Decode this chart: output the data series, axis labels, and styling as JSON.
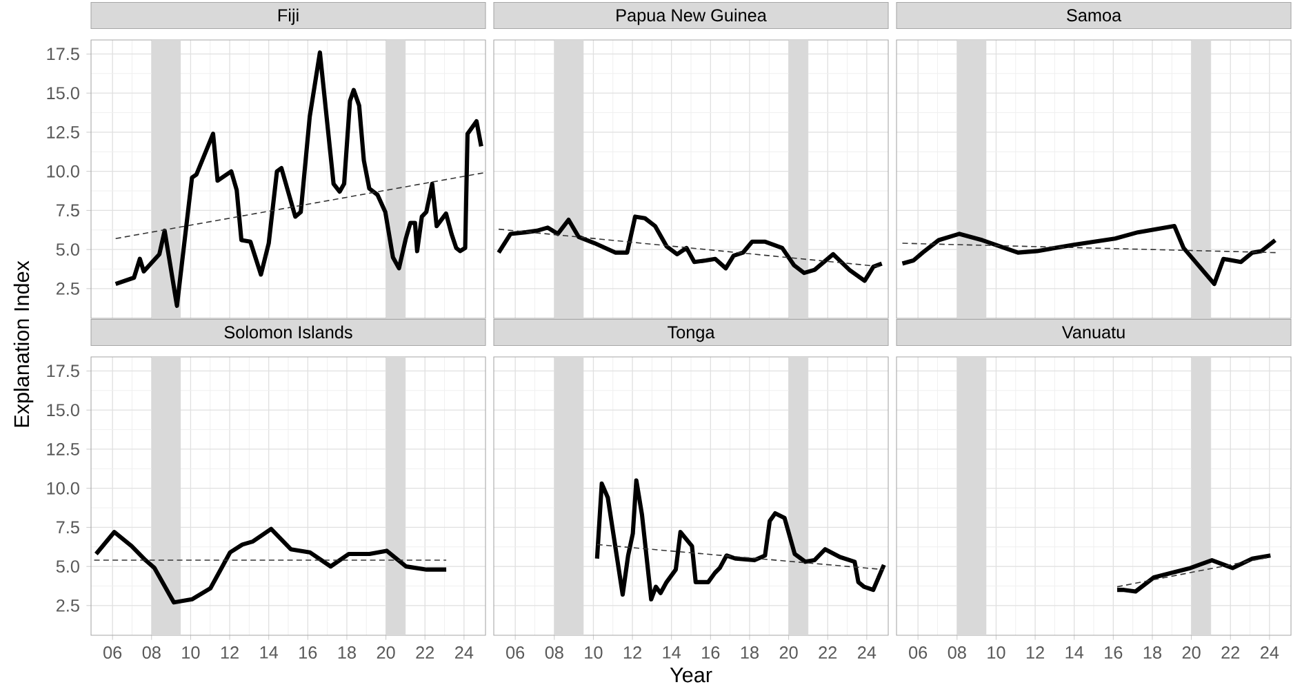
{
  "chart_data": [
    {
      "type": "line",
      "title": "Fiji",
      "ylabel": "Explanation Index",
      "xlim": [
        4.9,
        25.1
      ],
      "ylim": [
        0.6,
        18.4
      ],
      "grid": true,
      "tick_labels": "y",
      "xticks": [
        {
          "value": 6,
          "label": null
        },
        {
          "value": 8,
          "label": null
        },
        {
          "value": 10,
          "label": null
        },
        {
          "value": 12,
          "label": null
        },
        {
          "value": 14,
          "label": null
        },
        {
          "value": 16,
          "label": null
        },
        {
          "value": 18,
          "label": null
        },
        {
          "value": 20,
          "label": null
        },
        {
          "value": 22,
          "label": null
        },
        {
          "value": 24,
          "label": null
        }
      ],
      "yticks": [
        2.5,
        {
          "value": 5,
          "label": "5.0"
        },
        7.5,
        {
          "value": 10,
          "label": "10.0"
        },
        12.5,
        {
          "value": 15,
          "label": "15.0"
        },
        17.5
      ],
      "bands": [
        {
          "axis": "x",
          "from": 8,
          "to": 9.5,
          "color": "#d9d9d9"
        },
        {
          "axis": "x",
          "from": 20,
          "to": 21,
          "color": "#d9d9d9"
        }
      ],
      "series": [
        {
          "color": "#000000",
          "line_style": "solid",
          "x": [
            6.16,
            7.1,
            7.4,
            7.6,
            8.4,
            8.67,
            9.3,
            10.07,
            10.3,
            11.15,
            11.38,
            12.08,
            12.36,
            12.6,
            13.06,
            13.6,
            14.0,
            14.42,
            14.65,
            15.36,
            15.64,
            16.1,
            16.62,
            17.32,
            17.63,
            17.86,
            18.16,
            18.35,
            18.63,
            18.87,
            19.15,
            19.57,
            19.97,
            20.36,
            20.67,
            21.02,
            21.25,
            21.49,
            21.6,
            21.84,
            22.07,
            22.37,
            22.6,
            23.08,
            23.36,
            23.6,
            23.8,
            24.06,
            24.18,
            24.64,
            24.88
          ],
          "values": [
            2.8,
            3.2,
            4.4,
            3.6,
            4.7,
            6.2,
            1.4,
            9.6,
            9.8,
            12.4,
            9.4,
            10.0,
            8.8,
            5.6,
            5.5,
            3.4,
            5.4,
            10.0,
            10.2,
            7.1,
            7.4,
            13.5,
            17.6,
            9.2,
            8.7,
            9.2,
            14.5,
            15.2,
            14.2,
            10.7,
            8.9,
            8.5,
            7.4,
            4.5,
            3.8,
            5.7,
            6.7,
            6.7,
            4.9,
            7.1,
            7.4,
            9.2,
            6.5,
            7.3,
            6.0,
            5.1,
            4.9,
            5.1,
            12.4,
            13.2,
            11.6
          ]
        },
        {
          "type": "line",
          "color": "#333333",
          "line_style": "dashed",
          "x": [
            6.16,
            24.99
          ],
          "values": [
            5.7,
            9.9
          ]
        }
      ]
    },
    {
      "type": "line",
      "title": "Papua New Guinea",
      "xlim": [
        4.9,
        25.1
      ],
      "ylim": [
        0.6,
        18.4
      ],
      "grid": true,
      "tick_labels": false,
      "xticks": [
        {
          "value": 6,
          "label": null
        },
        {
          "value": 8,
          "label": null
        },
        {
          "value": 10,
          "label": null
        },
        {
          "value": 12,
          "label": null
        },
        {
          "value": 14,
          "label": null
        },
        {
          "value": 16,
          "label": null
        },
        {
          "value": 18,
          "label": null
        },
        {
          "value": 20,
          "label": null
        },
        {
          "value": 22,
          "label": null
        },
        {
          "value": 24,
          "label": null
        }
      ],
      "yticks": [
        {
          "value": 2.5,
          "label": null
        },
        {
          "value": 5,
          "label": null
        },
        {
          "value": 7.5,
          "label": null
        },
        {
          "value": 10,
          "label": null
        },
        {
          "value": 12.5,
          "label": null
        },
        {
          "value": 15,
          "label": null
        },
        {
          "value": 17.5,
          "label": null
        }
      ],
      "bands": [
        {
          "axis": "x",
          "from": 8,
          "to": 9.5,
          "color": "#d9d9d9"
        },
        {
          "axis": "x",
          "from": 20,
          "to": 21,
          "color": "#d9d9d9"
        }
      ],
      "series": [
        {
          "color": "#000000",
          "line_style": "solid",
          "x": [
            5.15,
            5.76,
            6.52,
            7.11,
            7.66,
            8.18,
            8.73,
            9.25,
            10.07,
            11.14,
            11.73,
            12.14,
            12.64,
            13.16,
            13.75,
            14.29,
            14.77,
            15.17,
            15.76,
            16.24,
            16.78,
            17.18,
            17.66,
            18.13,
            18.8,
            19.67,
            20.27,
            20.79,
            21.33,
            22.28,
            23.11,
            23.89,
            24.34,
            24.77
          ],
          "values": [
            4.8,
            6.0,
            6.1,
            6.2,
            6.4,
            6.0,
            6.9,
            5.8,
            5.4,
            4.8,
            4.8,
            7.1,
            7.0,
            6.5,
            5.2,
            4.7,
            5.1,
            4.2,
            4.3,
            4.4,
            3.8,
            4.6,
            4.8,
            5.5,
            5.5,
            5.1,
            4.0,
            3.5,
            3.7,
            4.7,
            3.7,
            3.0,
            3.9,
            4.1
          ]
        },
        {
          "type": "line",
          "color": "#333333",
          "line_style": "dashed",
          "x": [
            5.15,
            24.77
          ],
          "values": [
            6.3,
            3.9
          ]
        }
      ]
    },
    {
      "type": "line",
      "title": "Samoa",
      "xlim": [
        4.9,
        25.1
      ],
      "ylim": [
        0.6,
        18.4
      ],
      "grid": true,
      "tick_labels": false,
      "xticks": [
        {
          "value": 6,
          "label": null
        },
        {
          "value": 8,
          "label": null
        },
        {
          "value": 10,
          "label": null
        },
        {
          "value": 12,
          "label": null
        },
        {
          "value": 14,
          "label": null
        },
        {
          "value": 16,
          "label": null
        },
        {
          "value": 18,
          "label": null
        },
        {
          "value": 20,
          "label": null
        },
        {
          "value": 22,
          "label": null
        },
        {
          "value": 24,
          "label": null
        }
      ],
      "yticks": [
        {
          "value": 2.5,
          "label": null
        },
        {
          "value": 5,
          "label": null
        },
        {
          "value": 7.5,
          "label": null
        },
        {
          "value": 10,
          "label": null
        },
        {
          "value": 12.5,
          "label": null
        },
        {
          "value": 15,
          "label": null
        },
        {
          "value": 17.5,
          "label": null
        }
      ],
      "bands": [
        {
          "axis": "x",
          "from": 8,
          "to": 9.5,
          "color": "#d9d9d9"
        },
        {
          "axis": "x",
          "from": 20,
          "to": 21,
          "color": "#d9d9d9"
        }
      ],
      "series": [
        {
          "color": "#000000",
          "line_style": "solid",
          "x": [
            5.2,
            5.77,
            6.24,
            7.06,
            8.12,
            9.29,
            11.12,
            12.1,
            13.98,
            16.09,
            17.26,
            19.13,
            19.6,
            21.17,
            21.64,
            22.53,
            23.12,
            23.59,
            24.29
          ],
          "values": [
            4.1,
            4.3,
            4.8,
            5.6,
            6.0,
            5.6,
            4.8,
            4.9,
            5.3,
            5.7,
            6.1,
            6.5,
            5.1,
            2.8,
            4.4,
            4.2,
            4.8,
            4.9,
            5.6
          ]
        },
        {
          "type": "line",
          "color": "#333333",
          "line_style": "dashed",
          "x": [
            5.2,
            24.33
          ],
          "values": [
            5.4,
            4.8
          ]
        }
      ]
    },
    {
      "type": "line",
      "title": "Solomon Islands",
      "xlim": [
        4.9,
        25.1
      ],
      "ylim": [
        0.6,
        18.4
      ],
      "grid": true,
      "xticks": [
        {
          "value": 6,
          "label": "06"
        },
        {
          "value": 8,
          "label": "08"
        },
        {
          "value": 10,
          "label": "10"
        },
        {
          "value": 12,
          "label": "12"
        },
        {
          "value": 14,
          "label": "14"
        },
        {
          "value": 16,
          "label": "16"
        },
        {
          "value": 18,
          "label": "18"
        },
        {
          "value": 20,
          "label": "20"
        },
        {
          "value": 22,
          "label": "22"
        },
        {
          "value": 24,
          "label": "24"
        }
      ],
      "yticks": [
        2.5,
        {
          "value": 5,
          "label": "5.0"
        },
        7.5,
        {
          "value": 10,
          "label": "10.0"
        },
        12.5,
        {
          "value": 15,
          "label": "15.0"
        },
        17.5
      ],
      "bands": [
        {
          "axis": "x",
          "from": 8,
          "to": 9.5,
          "color": "#d9d9d9"
        },
        {
          "axis": "x",
          "from": 20,
          "to": 21,
          "color": "#d9d9d9"
        }
      ],
      "series": [
        {
          "color": "#000000",
          "line_style": "solid",
          "x": [
            5.16,
            6.09,
            6.98,
            7.69,
            8.15,
            9.14,
            10.07,
            11.01,
            12.02,
            12.65,
            13.19,
            14.12,
            15.13,
            16.11,
            17.17,
            18.1,
            19.16,
            20.04,
            21.03,
            22.08,
            23.09
          ],
          "values": [
            5.8,
            7.2,
            6.3,
            5.4,
            4.9,
            2.7,
            2.9,
            3.6,
            5.9,
            6.4,
            6.6,
            7.4,
            6.1,
            5.9,
            5.0,
            5.8,
            5.8,
            6.0,
            5.0,
            4.8,
            4.8
          ]
        },
        {
          "type": "line",
          "color": "#333333",
          "line_style": "dashed",
          "x": [
            5.06,
            23.09
          ],
          "values": [
            5.4,
            5.4
          ]
        }
      ]
    },
    {
      "type": "line",
      "title": "Tonga",
      "xlabel": "Year",
      "xlim": [
        4.9,
        25.1
      ],
      "ylim": [
        0.6,
        18.4
      ],
      "grid": true,
      "tick_labels": "x",
      "xticks": [
        {
          "value": 6,
          "label": "06"
        },
        {
          "value": 8,
          "label": "08"
        },
        {
          "value": 10,
          "label": "10"
        },
        {
          "value": 12,
          "label": "12"
        },
        {
          "value": 14,
          "label": "14"
        },
        {
          "value": 16,
          "label": "16"
        },
        {
          "value": 18,
          "label": "18"
        },
        {
          "value": 20,
          "label": "20"
        },
        {
          "value": 22,
          "label": "22"
        },
        {
          "value": 24,
          "label": "24"
        }
      ],
      "yticks": [
        {
          "value": 2.5,
          "label": null
        },
        {
          "value": 5,
          "label": null
        },
        {
          "value": 7.5,
          "label": null
        },
        {
          "value": 10,
          "label": null
        },
        {
          "value": 12.5,
          "label": null
        },
        {
          "value": 15,
          "label": null
        },
        {
          "value": 17.5,
          "label": null
        }
      ],
      "bands": [
        {
          "axis": "x",
          "from": 8,
          "to": 9.5,
          "color": "#d9d9d9"
        },
        {
          "axis": "x",
          "from": 20,
          "to": 21,
          "color": "#d9d9d9"
        }
      ],
      "series": [
        {
          "color": "#000000",
          "line_style": "solid",
          "x": [
            10.19,
            10.43,
            10.74,
            11.5,
            11.78,
            12.02,
            12.2,
            12.49,
            12.96,
            13.2,
            13.44,
            13.75,
            14.22,
            14.46,
            15.05,
            15.24,
            15.88,
            16.23,
            16.47,
            16.82,
            17.3,
            18.25,
            18.79,
            19.03,
            19.31,
            19.79,
            20.31,
            20.85,
            21.32,
            21.87,
            22.63,
            23.38,
            23.57,
            23.86,
            24.33,
            24.88
          ],
          "values": [
            5.5,
            10.3,
            9.4,
            3.2,
            5.7,
            7.1,
            10.5,
            8.3,
            2.9,
            3.7,
            3.3,
            4.0,
            4.8,
            7.2,
            6.3,
            4.0,
            4.0,
            4.6,
            4.9,
            5.7,
            5.5,
            5.4,
            5.7,
            7.9,
            8.4,
            8.1,
            5.8,
            5.3,
            5.4,
            6.1,
            5.6,
            5.3,
            4.0,
            3.7,
            3.5,
            5.1
          ]
        },
        {
          "type": "line",
          "color": "#333333",
          "line_style": "dashed",
          "x": [
            10.19,
            24.88
          ],
          "values": [
            6.4,
            4.8
          ]
        }
      ]
    },
    {
      "type": "line",
      "title": "Vanuatu",
      "xlim": [
        4.9,
        25.1
      ],
      "ylim": [
        0.6,
        18.4
      ],
      "grid": true,
      "tick_labels": "x",
      "xticks": [
        {
          "value": 6,
          "label": "06"
        },
        {
          "value": 8,
          "label": "08"
        },
        {
          "value": 10,
          "label": "10"
        },
        {
          "value": 12,
          "label": "12"
        },
        {
          "value": 14,
          "label": "14"
        },
        {
          "value": 16,
          "label": "16"
        },
        {
          "value": 18,
          "label": "18"
        },
        {
          "value": 20,
          "label": "20"
        },
        {
          "value": 22,
          "label": "22"
        },
        {
          "value": 24,
          "label": "24"
        }
      ],
      "yticks": [
        {
          "value": 2.5,
          "label": null
        },
        {
          "value": 5,
          "label": null
        },
        {
          "value": 7.5,
          "label": null
        },
        {
          "value": 10,
          "label": null
        },
        {
          "value": 12.5,
          "label": null
        },
        {
          "value": 15,
          "label": null
        },
        {
          "value": 17.5,
          "label": null
        }
      ],
      "bands": [
        {
          "axis": "x",
          "from": 8,
          "to": 9.5,
          "color": "#d9d9d9"
        },
        {
          "axis": "x",
          "from": 20,
          "to": 21,
          "color": "#d9d9d9"
        }
      ],
      "series": [
        {
          "color": "#000000",
          "line_style": "solid",
          "x": [
            16.2,
            16.55,
            17.14,
            18.08,
            19.01,
            19.95,
            21.05,
            22.11,
            23.12,
            24.05
          ],
          "values": [
            3.5,
            3.5,
            3.4,
            4.3,
            4.6,
            4.9,
            5.4,
            4.9,
            5.5,
            5.7
          ]
        },
        {
          "type": "line",
          "color": "#333333",
          "line_style": "dashed",
          "x": [
            16.2,
            24.05
          ],
          "values": [
            3.7,
            5.6
          ]
        }
      ]
    }
  ]
}
